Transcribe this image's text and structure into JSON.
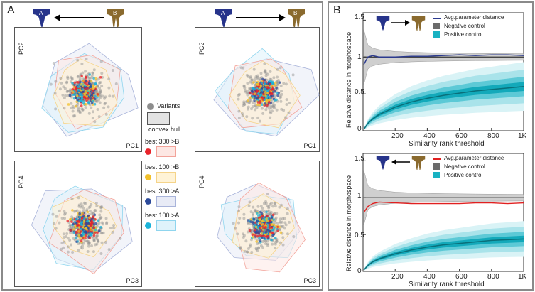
{
  "panelA": {
    "label": "A",
    "plots": [
      {
        "xlabel": "PC1",
        "ylabel": "PC2"
      },
      {
        "xlabel": "PC1",
        "ylabel": "PC2"
      },
      {
        "xlabel": "PC3",
        "ylabel": "PC4"
      },
      {
        "xlabel": "PC3",
        "ylabel": "PC4"
      }
    ],
    "shape_labels": {
      "a": "A",
      "b": "B"
    },
    "legend": {
      "variants": "Variants",
      "hull": "convex hull",
      "items": [
        {
          "label": "best 300 >B",
          "dot": "#e8232a",
          "fill": "#fde7e3",
          "stroke": "#f2a39a"
        },
        {
          "label": "best 100 >B",
          "dot": "#f1c02b",
          "fill": "#fff3d6",
          "stroke": "#f5d48a"
        },
        {
          "label": "best 300 >A",
          "dot": "#2c4a9a",
          "fill": "#e8ebf6",
          "stroke": "#a9b4da"
        },
        {
          "label": "best 100 >A",
          "dot": "#1bb3d9",
          "fill": "#dff3fb",
          "stroke": "#8fd5ee"
        }
      ]
    }
  },
  "panelB": {
    "label": "B",
    "chart_data": [
      {
        "type": "line",
        "direction": "A to B",
        "ylabel": "Relative distance in morphospace",
        "xlabel": "Similarity rank threshold",
        "xticks": [
          "200",
          "400",
          "600",
          "800",
          "1K"
        ],
        "yticks": [
          "0",
          "0.5",
          "1",
          "1.5"
        ],
        "xlim": [
          0,
          1000
        ],
        "ylim": [
          0,
          1.6
        ],
        "legend": [
          "Avg.parameter distance",
          "Negative control",
          "Positive control"
        ],
        "series_color": "#2b3a8f",
        "x": [
          5,
          30,
          60,
          100,
          200,
          300,
          400,
          500,
          600,
          700,
          800,
          900,
          1000
        ],
        "avg_param": [
          0.9,
          1.0,
          1.02,
          1.0,
          1.0,
          1.01,
          1.01,
          1.02,
          1.03,
          1.02,
          1.03,
          1.03,
          1.02
        ],
        "negative": [
          1.0,
          1.0,
          1.0,
          1.0,
          1.0,
          1.0,
          1.0,
          1.0,
          1.0,
          1.0,
          1.0,
          1.0,
          1.0
        ],
        "positive": [
          0.02,
          0.1,
          0.16,
          0.22,
          0.32,
          0.39,
          0.44,
          0.48,
          0.51,
          0.54,
          0.56,
          0.58,
          0.6
        ]
      },
      {
        "type": "line",
        "direction": "B to A",
        "ylabel": "Relative distance in morphospace",
        "xlabel": "Similarity rank threshold",
        "xticks": [
          "200",
          "400",
          "600",
          "800",
          "1K"
        ],
        "yticks": [
          "0",
          "0.5",
          "1",
          "1.5"
        ],
        "xlim": [
          0,
          1000
        ],
        "ylim": [
          0,
          1.6
        ],
        "legend": [
          "Avg.parameter distance",
          "Negative control",
          "Positive control"
        ],
        "series_color": "#e02020",
        "x": [
          5,
          30,
          60,
          100,
          200,
          300,
          400,
          500,
          600,
          700,
          800,
          900,
          1000
        ],
        "avg_param": [
          0.8,
          0.88,
          0.92,
          0.94,
          0.93,
          0.92,
          0.92,
          0.92,
          0.92,
          0.93,
          0.93,
          0.92,
          0.93
        ],
        "negative": [
          1.0,
          1.0,
          1.0,
          1.0,
          1.0,
          1.0,
          1.0,
          1.0,
          1.0,
          1.0,
          1.0,
          1.0,
          1.0
        ],
        "positive": [
          0.02,
          0.08,
          0.13,
          0.17,
          0.24,
          0.29,
          0.33,
          0.36,
          0.38,
          0.4,
          0.42,
          0.43,
          0.44
        ]
      }
    ]
  }
}
